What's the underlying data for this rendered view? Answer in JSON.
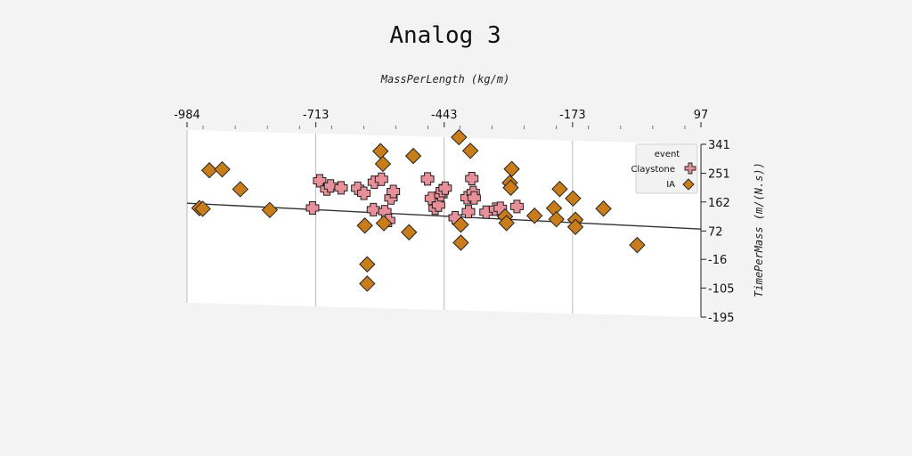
{
  "chart_data": {
    "type": "scatter",
    "title": "Analog 3",
    "xlabel": "MassPerLength (kg/m)",
    "ylabel": "TimePerMass (m/(N.s))",
    "xlim": [
      -984,
      97
    ],
    "ylim": [
      -195,
      341
    ],
    "x_ticks": [
      "-984",
      "-713",
      "-443",
      "-173",
      "97"
    ],
    "y_ticks": [
      "341",
      "251",
      "162",
      "72",
      "-16",
      "-105",
      "-195"
    ],
    "x_axis_position": "top",
    "y_axis_position": "right",
    "grid": "vertical",
    "legend": {
      "title": "event",
      "placement": "top-right"
    },
    "series": [
      {
        "name": "Claystone",
        "marker": "plus",
        "color": "#e8909a",
        "points": [
          [
            -720,
            110
          ],
          [
            -705,
            195
          ],
          [
            -690,
            170
          ],
          [
            -682,
            180
          ],
          [
            -660,
            175
          ],
          [
            -625,
            175
          ],
          [
            -612,
            160
          ],
          [
            -592,
            110
          ],
          [
            -590,
            195
          ],
          [
            -575,
            205
          ],
          [
            -568,
            105
          ],
          [
            -560,
            78
          ],
          [
            -555,
            148
          ],
          [
            -550,
            168
          ],
          [
            -478,
            210
          ],
          [
            -470,
            150
          ],
          [
            -462,
            120
          ],
          [
            -455,
            130
          ],
          [
            -450,
            162
          ],
          [
            -447,
            175
          ],
          [
            -441,
            183
          ],
          [
            -420,
            92
          ],
          [
            -395,
            155
          ],
          [
            -392,
            112
          ],
          [
            -385,
            215
          ],
          [
            -382,
            172
          ],
          [
            -380,
            155
          ],
          [
            -355,
            112
          ],
          [
            -335,
            122
          ],
          [
            -325,
            125
          ],
          [
            -290,
            132
          ]
        ]
      },
      {
        "name": "IA",
        "marker": "diamond",
        "color": "#c97c1a",
        "points": [
          [
            -958,
            100
          ],
          [
            -951,
            98
          ],
          [
            -937,
            218
          ],
          [
            -910,
            222
          ],
          [
            -872,
            162
          ],
          [
            -810,
            100
          ],
          [
            -610,
            60
          ],
          [
            -605,
            -60
          ],
          [
            -605,
            -120
          ],
          [
            -577,
            292
          ],
          [
            -572,
            253
          ],
          [
            -570,
            69
          ],
          [
            -517,
            43
          ],
          [
            -508,
            280
          ],
          [
            -412,
            342
          ],
          [
            -408,
            71
          ],
          [
            -408,
            15
          ],
          [
            -388,
            301
          ],
          [
            -315,
            100
          ],
          [
            -312,
            80
          ],
          [
            -305,
            205
          ],
          [
            -303,
            190
          ],
          [
            -301,
            248
          ],
          [
            -253,
            105
          ],
          [
            -212,
            130
          ],
          [
            -207,
            96
          ],
          [
            -200,
            190
          ],
          [
            -172,
            162
          ],
          [
            -167,
            96
          ],
          [
            -167,
            74
          ],
          [
            -108,
            133
          ],
          [
            -37,
            23
          ]
        ]
      }
    ],
    "trend_line": {
      "x": [
        -984,
        97
      ],
      "y": [
        114,
        78
      ]
    }
  }
}
